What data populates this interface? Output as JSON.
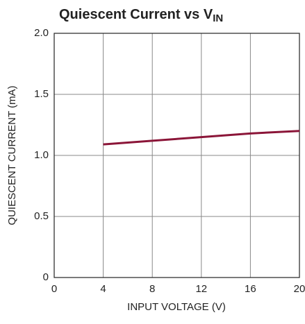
{
  "chart_data": {
    "type": "line",
    "title": "Quiescent Current vs V",
    "title_subscript": "IN",
    "x_label": "INPUT VOLTAGE (V)",
    "y_label": "QUIESCENT CURRENT (mA)",
    "x": [
      4,
      8,
      12,
      16,
      20
    ],
    "series": [
      {
        "name": "Quiescent current",
        "color": "#8b1538",
        "values": [
          1.09,
          1.12,
          1.15,
          1.18,
          1.2
        ]
      }
    ],
    "xlim": [
      0,
      20
    ],
    "xticks": [
      0,
      4,
      8,
      12,
      16,
      20
    ],
    "ylim": [
      0,
      2
    ],
    "yticks": [
      0,
      0.5,
      {
        "value": 1,
        "label": "1.0"
      },
      1.5,
      {
        "value": 2,
        "label": "2.0"
      }
    ],
    "grid": true
  }
}
